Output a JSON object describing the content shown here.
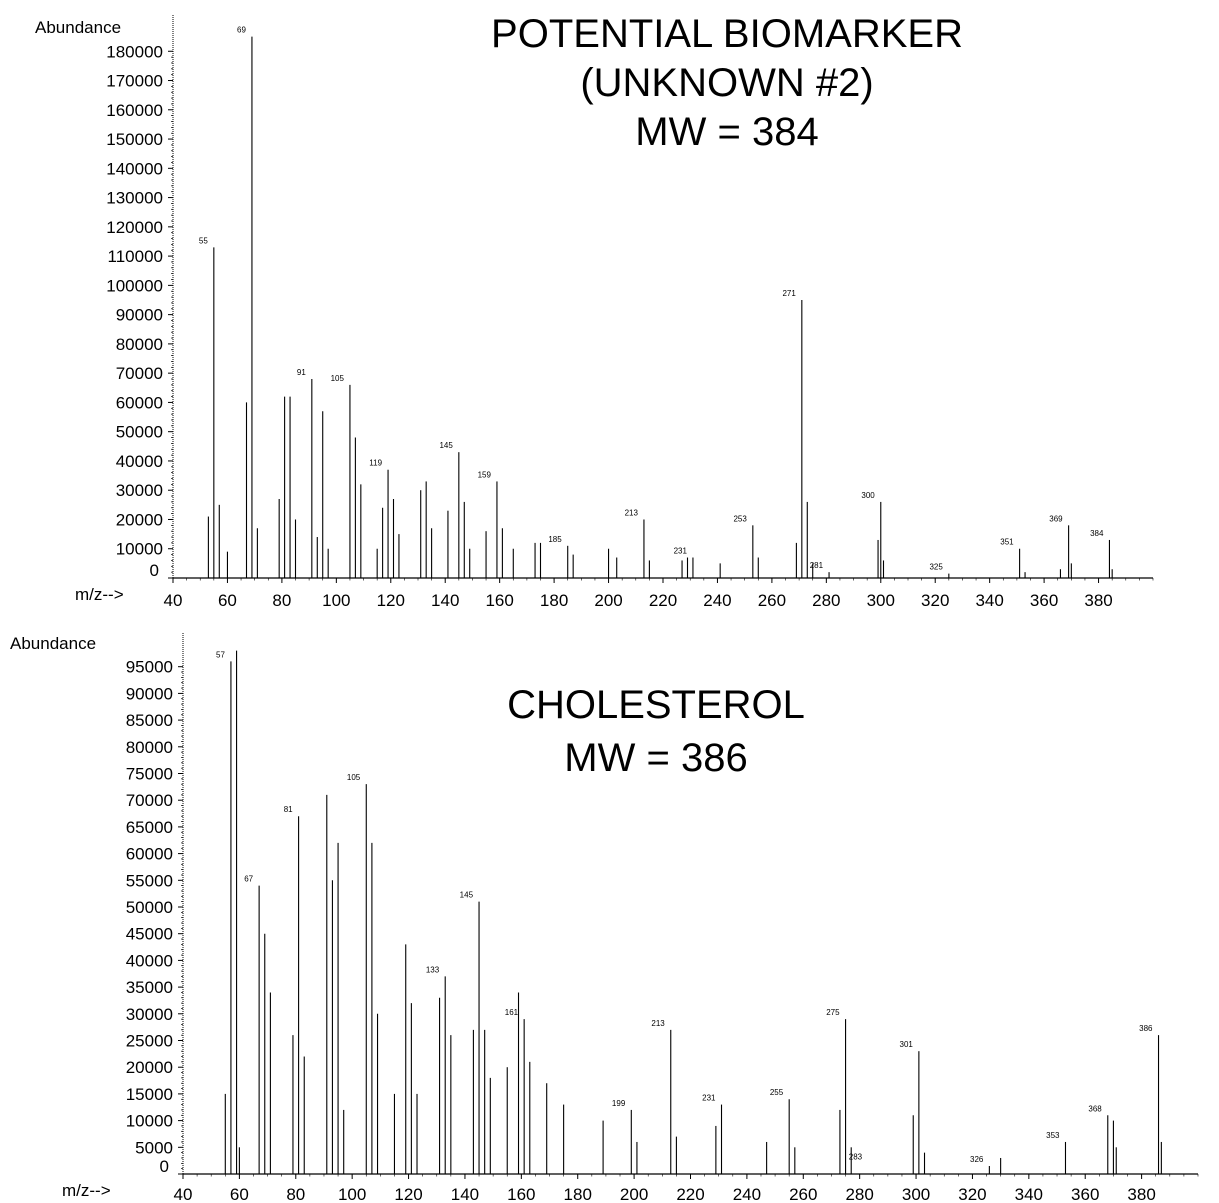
{
  "chart_data": [
    {
      "type": "bar",
      "title": [
        "POTENTIAL BIOMARKER",
        "(UNKNOWN #2)",
        "MW = 384"
      ],
      "ylabel": "Abundance",
      "xlabel": "m/z-->",
      "xlim": [
        40,
        400
      ],
      "ylim": [
        0,
        190000
      ],
      "xticks": [
        40,
        60,
        80,
        100,
        120,
        140,
        160,
        180,
        200,
        220,
        240,
        260,
        280,
        300,
        320,
        340,
        360,
        380
      ],
      "yticks": [
        0,
        10000,
        20000,
        30000,
        40000,
        50000,
        60000,
        70000,
        80000,
        90000,
        100000,
        110000,
        120000,
        130000,
        140000,
        150000,
        160000,
        170000,
        180000
      ],
      "peaks": [
        [
          53,
          21000
        ],
        [
          55,
          113000
        ],
        [
          57,
          25000
        ],
        [
          60,
          9000
        ],
        [
          67,
          60000
        ],
        [
          69,
          185000
        ],
        [
          71,
          17000
        ],
        [
          79,
          27000
        ],
        [
          81,
          62000
        ],
        [
          83,
          62000
        ],
        [
          85,
          20000
        ],
        [
          91,
          68000
        ],
        [
          93,
          14000
        ],
        [
          95,
          57000
        ],
        [
          97,
          10000
        ],
        [
          105,
          66000
        ],
        [
          107,
          48000
        ],
        [
          109,
          32000
        ],
        [
          115,
          10000
        ],
        [
          117,
          24000
        ],
        [
          119,
          37000
        ],
        [
          121,
          27000
        ],
        [
          123,
          15000
        ],
        [
          131,
          30000
        ],
        [
          133,
          33000
        ],
        [
          135,
          17000
        ],
        [
          141,
          23000
        ],
        [
          145,
          43000
        ],
        [
          147,
          26000
        ],
        [
          149,
          10000
        ],
        [
          155,
          16000
        ],
        [
          159,
          33000
        ],
        [
          161,
          17000
        ],
        [
          165,
          10000
        ],
        [
          173,
          12000
        ],
        [
          175,
          12000
        ],
        [
          185,
          11000
        ],
        [
          187,
          8000
        ],
        [
          200,
          10000
        ],
        [
          203,
          7000
        ],
        [
          213,
          20000
        ],
        [
          215,
          6000
        ],
        [
          227,
          6000
        ],
        [
          229,
          7000
        ],
        [
          231,
          7000
        ],
        [
          241,
          5000
        ],
        [
          253,
          18000
        ],
        [
          255,
          7000
        ],
        [
          269,
          12000
        ],
        [
          271,
          95000
        ],
        [
          273,
          26000
        ],
        [
          275,
          5000
        ],
        [
          281,
          2000
        ],
        [
          299,
          13000
        ],
        [
          300,
          26000
        ],
        [
          301,
          6000
        ],
        [
          325,
          1500
        ],
        [
          351,
          10000
        ],
        [
          353,
          2000
        ],
        [
          366,
          3000
        ],
        [
          369,
          18000
        ],
        [
          370,
          5000
        ],
        [
          384,
          13000
        ],
        [
          385,
          3000
        ]
      ],
      "peak_labels": [
        {
          "mz": 55,
          "text": "55"
        },
        {
          "mz": 69,
          "text": "69"
        },
        {
          "mz": 91,
          "text": "91"
        },
        {
          "mz": 105,
          "text": "105"
        },
        {
          "mz": 119,
          "text": "119"
        },
        {
          "mz": 145,
          "text": "145"
        },
        {
          "mz": 159,
          "text": "159"
        },
        {
          "mz": 185,
          "text": "185"
        },
        {
          "mz": 213,
          "text": "213"
        },
        {
          "mz": 231,
          "text": "231"
        },
        {
          "mz": 253,
          "text": "253"
        },
        {
          "mz": 271,
          "text": "271"
        },
        {
          "mz": 281,
          "text": "281"
        },
        {
          "mz": 300,
          "text": "300"
        },
        {
          "mz": 325,
          "text": "325"
        },
        {
          "mz": 351,
          "text": "351"
        },
        {
          "mz": 369,
          "text": "369"
        },
        {
          "mz": 384,
          "text": "384"
        }
      ]
    },
    {
      "type": "bar",
      "title": [
        "CHOLESTEROL",
        "MW = 386"
      ],
      "ylabel": "Abundance",
      "xlabel": "m/z-->",
      "xlim": [
        40,
        400
      ],
      "ylim": [
        0,
        100000
      ],
      "xticks": [
        40,
        60,
        80,
        100,
        120,
        140,
        160,
        180,
        200,
        220,
        240,
        260,
        280,
        300,
        320,
        340,
        360,
        380
      ],
      "yticks": [
        0,
        5000,
        10000,
        15000,
        20000,
        25000,
        30000,
        35000,
        40000,
        45000,
        50000,
        55000,
        60000,
        65000,
        70000,
        75000,
        80000,
        85000,
        90000,
        95000
      ],
      "peaks": [
        [
          55,
          15000
        ],
        [
          57,
          96000
        ],
        [
          59,
          98000
        ],
        [
          60,
          5000
        ],
        [
          67,
          54000
        ],
        [
          69,
          45000
        ],
        [
          71,
          34000
        ],
        [
          79,
          26000
        ],
        [
          81,
          67000
        ],
        [
          83,
          22000
        ],
        [
          91,
          71000
        ],
        [
          93,
          55000
        ],
        [
          95,
          62000
        ],
        [
          97,
          12000
        ],
        [
          105,
          73000
        ],
        [
          107,
          62000
        ],
        [
          109,
          30000
        ],
        [
          115,
          15000
        ],
        [
          119,
          43000
        ],
        [
          121,
          32000
        ],
        [
          123,
          15000
        ],
        [
          131,
          33000
        ],
        [
          133,
          37000
        ],
        [
          135,
          26000
        ],
        [
          143,
          27000
        ],
        [
          145,
          51000
        ],
        [
          147,
          27000
        ],
        [
          149,
          18000
        ],
        [
          155,
          20000
        ],
        [
          159,
          34000
        ],
        [
          161,
          29000
        ],
        [
          163,
          21000
        ],
        [
          169,
          17000
        ],
        [
          175,
          13000
        ],
        [
          189,
          10000
        ],
        [
          199,
          12000
        ],
        [
          201,
          6000
        ],
        [
          213,
          27000
        ],
        [
          215,
          7000
        ],
        [
          229,
          9000
        ],
        [
          231,
          13000
        ],
        [
          247,
          6000
        ],
        [
          255,
          14000
        ],
        [
          257,
          5000
        ],
        [
          273,
          12000
        ],
        [
          275,
          29000
        ],
        [
          277,
          5000
        ],
        [
          299,
          11000
        ],
        [
          301,
          23000
        ],
        [
          303,
          4000
        ],
        [
          326,
          1500
        ],
        [
          330,
          3000
        ],
        [
          353,
          6000
        ],
        [
          368,
          11000
        ],
        [
          370,
          10000
        ],
        [
          371,
          5000
        ],
        [
          386,
          26000
        ],
        [
          387,
          6000
        ]
      ],
      "peak_labels": [
        {
          "mz": 57,
          "text": "57"
        },
        {
          "mz": 67,
          "text": "67"
        },
        {
          "mz": 81,
          "text": "81"
        },
        {
          "mz": 105,
          "text": "105"
        },
        {
          "mz": 133,
          "text": "133"
        },
        {
          "mz": 145,
          "text": "145"
        },
        {
          "mz": 161,
          "text": "161"
        },
        {
          "mz": 199,
          "text": "199"
        },
        {
          "mz": 213,
          "text": "213"
        },
        {
          "mz": 231,
          "text": "231"
        },
        {
          "mz": 255,
          "text": "255"
        },
        {
          "mz": 275,
          "text": "275"
        },
        {
          "mz": 283,
          "text": "283"
        },
        {
          "mz": 301,
          "text": "301"
        },
        {
          "mz": 326,
          "text": "326"
        },
        {
          "mz": 353,
          "text": "353"
        },
        {
          "mz": 368,
          "text": "368"
        },
        {
          "mz": 386,
          "text": "386"
        }
      ]
    }
  ]
}
